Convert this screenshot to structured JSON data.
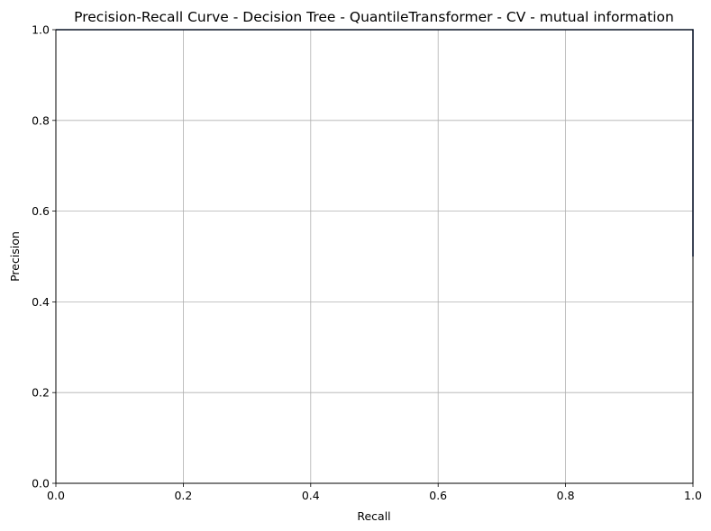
{
  "chart_data": {
    "type": "line",
    "title": "Precision-Recall Curve - Decision Tree - QuantileTransformer - CV - mutual information",
    "xlabel": "Recall",
    "ylabel": "Precision",
    "xlim": [
      0,
      1
    ],
    "ylim": [
      0,
      1
    ],
    "grid": true,
    "x_ticks": [
      "0.0",
      "0.2",
      "0.4",
      "0.6",
      "0.8",
      "1.0"
    ],
    "y_ticks": [
      "0.0",
      "0.2",
      "0.4",
      "0.6",
      "0.8",
      "1.0"
    ],
    "series": [
      {
        "color": "#1f3b73",
        "x": [
          0.0,
          1.0,
          1.0
        ],
        "y": [
          1.0,
          1.0,
          0.5
        ]
      }
    ]
  }
}
